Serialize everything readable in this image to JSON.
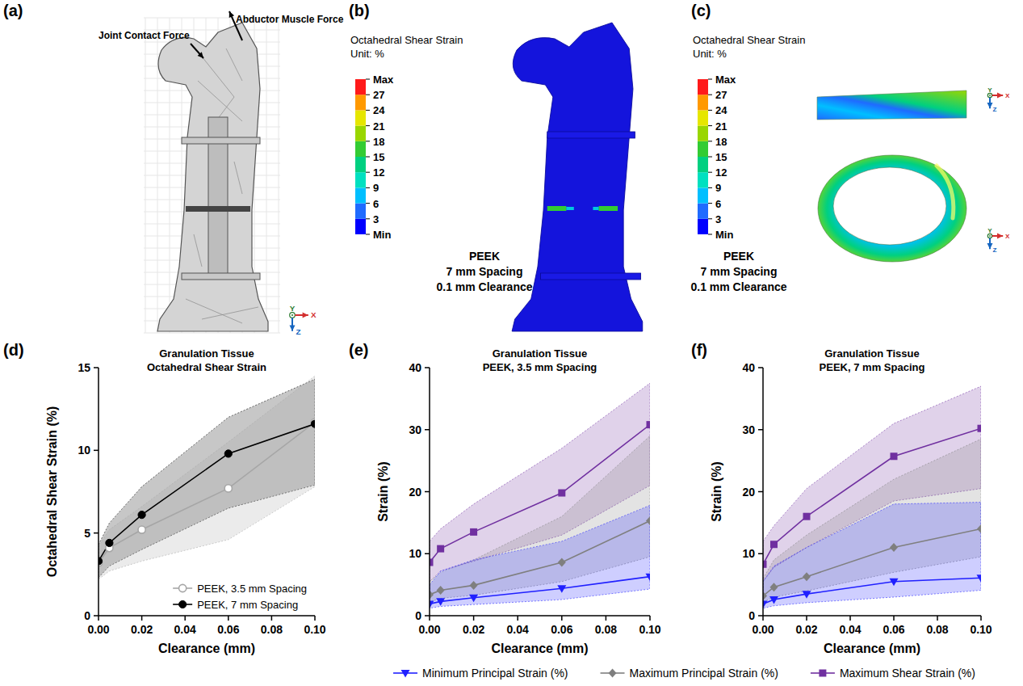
{
  "chart_data": [
    {
      "type": "diagram",
      "panel_label": "(a)",
      "annotations": [
        "Joint Contact Force",
        "Abductor Muscle Force"
      ],
      "triad": [
        "Y",
        "X",
        "Z"
      ]
    },
    {
      "type": "contour",
      "panel_label": "(b)",
      "colorbar": {
        "title": "Octahedral Shear Strain",
        "subtitle": "Unit: %",
        "range": [
          0,
          30
        ],
        "ticks": [
          {
            "value": 0,
            "label": "Min"
          },
          3,
          6,
          9,
          12,
          15,
          18,
          21,
          24,
          27,
          {
            "value": 30,
            "label": "Max"
          }
        ]
      },
      "annotations": [
        "PEEK",
        "7 mm Spacing",
        "0.1 mm Clearance"
      ]
    },
    {
      "type": "contour",
      "panel_label": "(c)",
      "colorbar": {
        "title": "Octahedral Shear Strain",
        "subtitle": "Unit: %",
        "range": [
          0,
          30
        ],
        "ticks": [
          {
            "value": 0,
            "label": "Min"
          },
          3,
          6,
          9,
          12,
          15,
          18,
          21,
          24,
          27,
          {
            "value": 30,
            "label": "Max"
          }
        ]
      },
      "annotations": [
        "PEEK",
        "7 mm Spacing",
        "0.1 mm Clearance"
      ],
      "triad": [
        "Y",
        "X",
        "Z"
      ]
    },
    {
      "type": "line",
      "panel_label": "(d)",
      "title": "Granulation Tissue",
      "subtitle": "Octahedral Shear Strain",
      "x_label": "Clearance (mm)",
      "y_label": "Octahedral Shear Strain (%)",
      "x": [
        0,
        0.005,
        0.02,
        0.06,
        0.1
      ],
      "xlim": [
        0,
        0.1
      ],
      "xticks": [
        {
          "value": 0,
          "label": "0.00"
        },
        {
          "value": 0.02,
          "label": "0.02"
        },
        {
          "value": 0.04,
          "label": "0.04"
        },
        {
          "value": 0.06,
          "label": "0.06"
        },
        {
          "value": 0.08,
          "label": "0.08"
        },
        {
          "value": 0.1,
          "label": "0.10"
        }
      ],
      "ylim": [
        0,
        15
      ],
      "yticks": [
        0,
        5,
        10,
        15
      ],
      "legend": "lower right",
      "series": [
        {
          "name": "PEEK, 3.5 mm Spacing",
          "color": "#a6a6a6",
          "marker": "open-circle",
          "values": [
            3.2,
            4.1,
            5.2,
            7.7,
            11.7
          ],
          "lower": [
            2.2,
            2.7,
            3.3,
            4.6,
            7.8
          ],
          "upper": [
            4.2,
            5.2,
            6.6,
            10.5,
            14.5
          ]
        },
        {
          "name": "PEEK, 7 mm Spacing",
          "color": "#000000",
          "marker": "circle",
          "values": [
            3.3,
            4.4,
            6.1,
            9.8,
            11.6
          ],
          "lower": [
            2.3,
            3.0,
            4.0,
            6.5,
            7.9
          ],
          "upper": [
            4.3,
            5.6,
            7.8,
            12.0,
            14.3
          ]
        }
      ]
    },
    {
      "type": "line",
      "panel_label": "(e)",
      "title": "Granulation Tissue",
      "subtitle": "PEEK, 3.5 mm Spacing",
      "x_label": "Clearance (mm)",
      "y_label": "Strain (%)",
      "x": [
        0,
        0.005,
        0.02,
        0.06,
        0.1
      ],
      "xlim": [
        0,
        0.1
      ],
      "xticks": [
        {
          "value": 0,
          "label": "0.00"
        },
        {
          "value": 0.02,
          "label": "0.02"
        },
        {
          "value": 0.04,
          "label": "0.04"
        },
        {
          "value": 0.06,
          "label": "0.06"
        },
        {
          "value": 0.08,
          "label": "0.08"
        },
        {
          "value": 0.1,
          "label": "0.10"
        }
      ],
      "ylim": [
        0,
        40
      ],
      "yticks": [
        0,
        10,
        20,
        30,
        40
      ],
      "legend": "bottom",
      "series": [
        {
          "name": "Minimum Principal Strain (%)",
          "color": "#2020ff",
          "marker": "triangle-down",
          "values": [
            1.9,
            2.3,
            2.9,
            4.4,
            6.3
          ],
          "lower": [
            1.2,
            1.5,
            1.8,
            2.6,
            4.3
          ],
          "upper": [
            5.0,
            7.2,
            9.0,
            12.0,
            17.8
          ]
        },
        {
          "name": "Maximum Principal Strain (%)",
          "color": "#7f7f7f",
          "marker": "diamond",
          "values": [
            3.4,
            4.1,
            4.9,
            8.6,
            15.3
          ],
          "lower": [
            2.2,
            2.8,
            3.3,
            5.5,
            9.5
          ],
          "upper": [
            5.5,
            7.0,
            9.0,
            16.0,
            29.0
          ]
        },
        {
          "name": "Maximum Shear Strain (%)",
          "color": "#7030a0",
          "marker": "square",
          "values": [
            8.6,
            10.8,
            13.5,
            19.8,
            30.8
          ],
          "lower": [
            5.5,
            7.2,
            8.8,
            13.0,
            21.0
          ],
          "upper": [
            12.0,
            14.0,
            18.0,
            27.0,
            37.5
          ]
        }
      ]
    },
    {
      "type": "line",
      "panel_label": "(f)",
      "title": "Granulation Tissue",
      "subtitle": "PEEK, 7 mm Spacing",
      "x_label": "Clearance (mm)",
      "y_label": "Strain (%)",
      "x": [
        0,
        0.005,
        0.02,
        0.06,
        0.1
      ],
      "xlim": [
        0,
        0.1
      ],
      "xticks": [
        {
          "value": 0,
          "label": "0.00"
        },
        {
          "value": 0.02,
          "label": "0.02"
        },
        {
          "value": 0.04,
          "label": "0.04"
        },
        {
          "value": 0.06,
          "label": "0.06"
        },
        {
          "value": 0.08,
          "label": "0.08"
        },
        {
          "value": 0.1,
          "label": "0.10"
        }
      ],
      "ylim": [
        0,
        40
      ],
      "yticks": [
        0,
        10,
        20,
        30,
        40
      ],
      "legend": "bottom",
      "series": [
        {
          "name": "Minimum Principal Strain (%)",
          "color": "#2020ff",
          "marker": "triangle-down",
          "values": [
            1.9,
            2.6,
            3.5,
            5.5,
            6.1
          ],
          "lower": [
            1.2,
            1.6,
            2.1,
            3.0,
            4.1
          ],
          "upper": [
            5.5,
            8.0,
            11.0,
            18.0,
            18.3
          ]
        },
        {
          "name": "Maximum Principal Strain (%)",
          "color": "#7f7f7f",
          "marker": "diamond",
          "values": [
            3.2,
            4.6,
            6.3,
            11.0,
            14.0
          ],
          "lower": [
            2.2,
            3.0,
            4.0,
            7.0,
            9.5
          ],
          "upper": [
            6.0,
            9.0,
            13.0,
            22.0,
            28.5
          ]
        },
        {
          "name": "Maximum Shear Strain (%)",
          "color": "#7030a0",
          "marker": "square",
          "values": [
            8.3,
            11.5,
            16.0,
            25.7,
            30.2
          ],
          "lower": [
            5.5,
            7.8,
            11.0,
            18.5,
            20.5
          ],
          "upper": [
            12.0,
            14.5,
            20.5,
            31.0,
            37.0
          ]
        }
      ]
    }
  ]
}
